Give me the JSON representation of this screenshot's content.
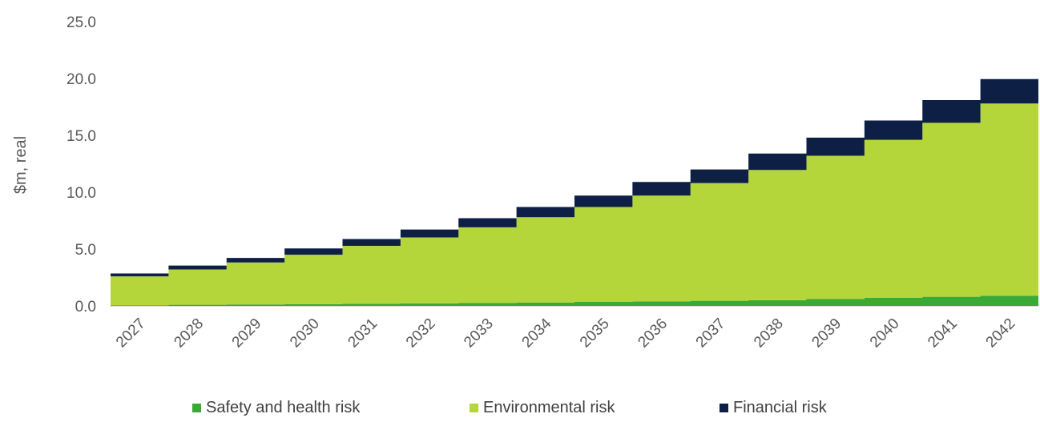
{
  "chart_data": {
    "type": "area",
    "stacked": true,
    "step": true,
    "categories": [
      "2027",
      "2028",
      "2029",
      "2030",
      "2031",
      "2032",
      "2033",
      "2034",
      "2035",
      "2036",
      "2037",
      "2038",
      "2039",
      "2040",
      "2041",
      "2042"
    ],
    "series": [
      {
        "name": "Safety and health risk",
        "color": "#3aa935",
        "values": [
          0.05,
          0.1,
          0.12,
          0.15,
          0.18,
          0.22,
          0.26,
          0.3,
          0.35,
          0.4,
          0.45,
          0.5,
          0.6,
          0.7,
          0.8,
          0.9
        ]
      },
      {
        "name": "Environmental risk",
        "color": "#b4d63b",
        "values": [
          2.55,
          3.1,
          3.7,
          4.35,
          5.1,
          5.8,
          6.65,
          7.5,
          8.35,
          9.3,
          10.35,
          11.45,
          12.6,
          13.9,
          15.3,
          16.9
        ]
      },
      {
        "name": "Financial risk",
        "color": "#0d1f45",
        "values": [
          0.25,
          0.35,
          0.4,
          0.55,
          0.6,
          0.7,
          0.8,
          0.9,
          1.0,
          1.2,
          1.2,
          1.45,
          1.6,
          1.7,
          2.0,
          2.15
        ]
      }
    ],
    "title": "",
    "xlabel": "",
    "ylabel": "$m, real",
    "ylim": [
      0,
      25
    ],
    "yticks": [
      "0.0",
      "5.0",
      "10.0",
      "15.0",
      "20.0",
      "25.0"
    ],
    "grid": false,
    "legend_position": "bottom"
  }
}
